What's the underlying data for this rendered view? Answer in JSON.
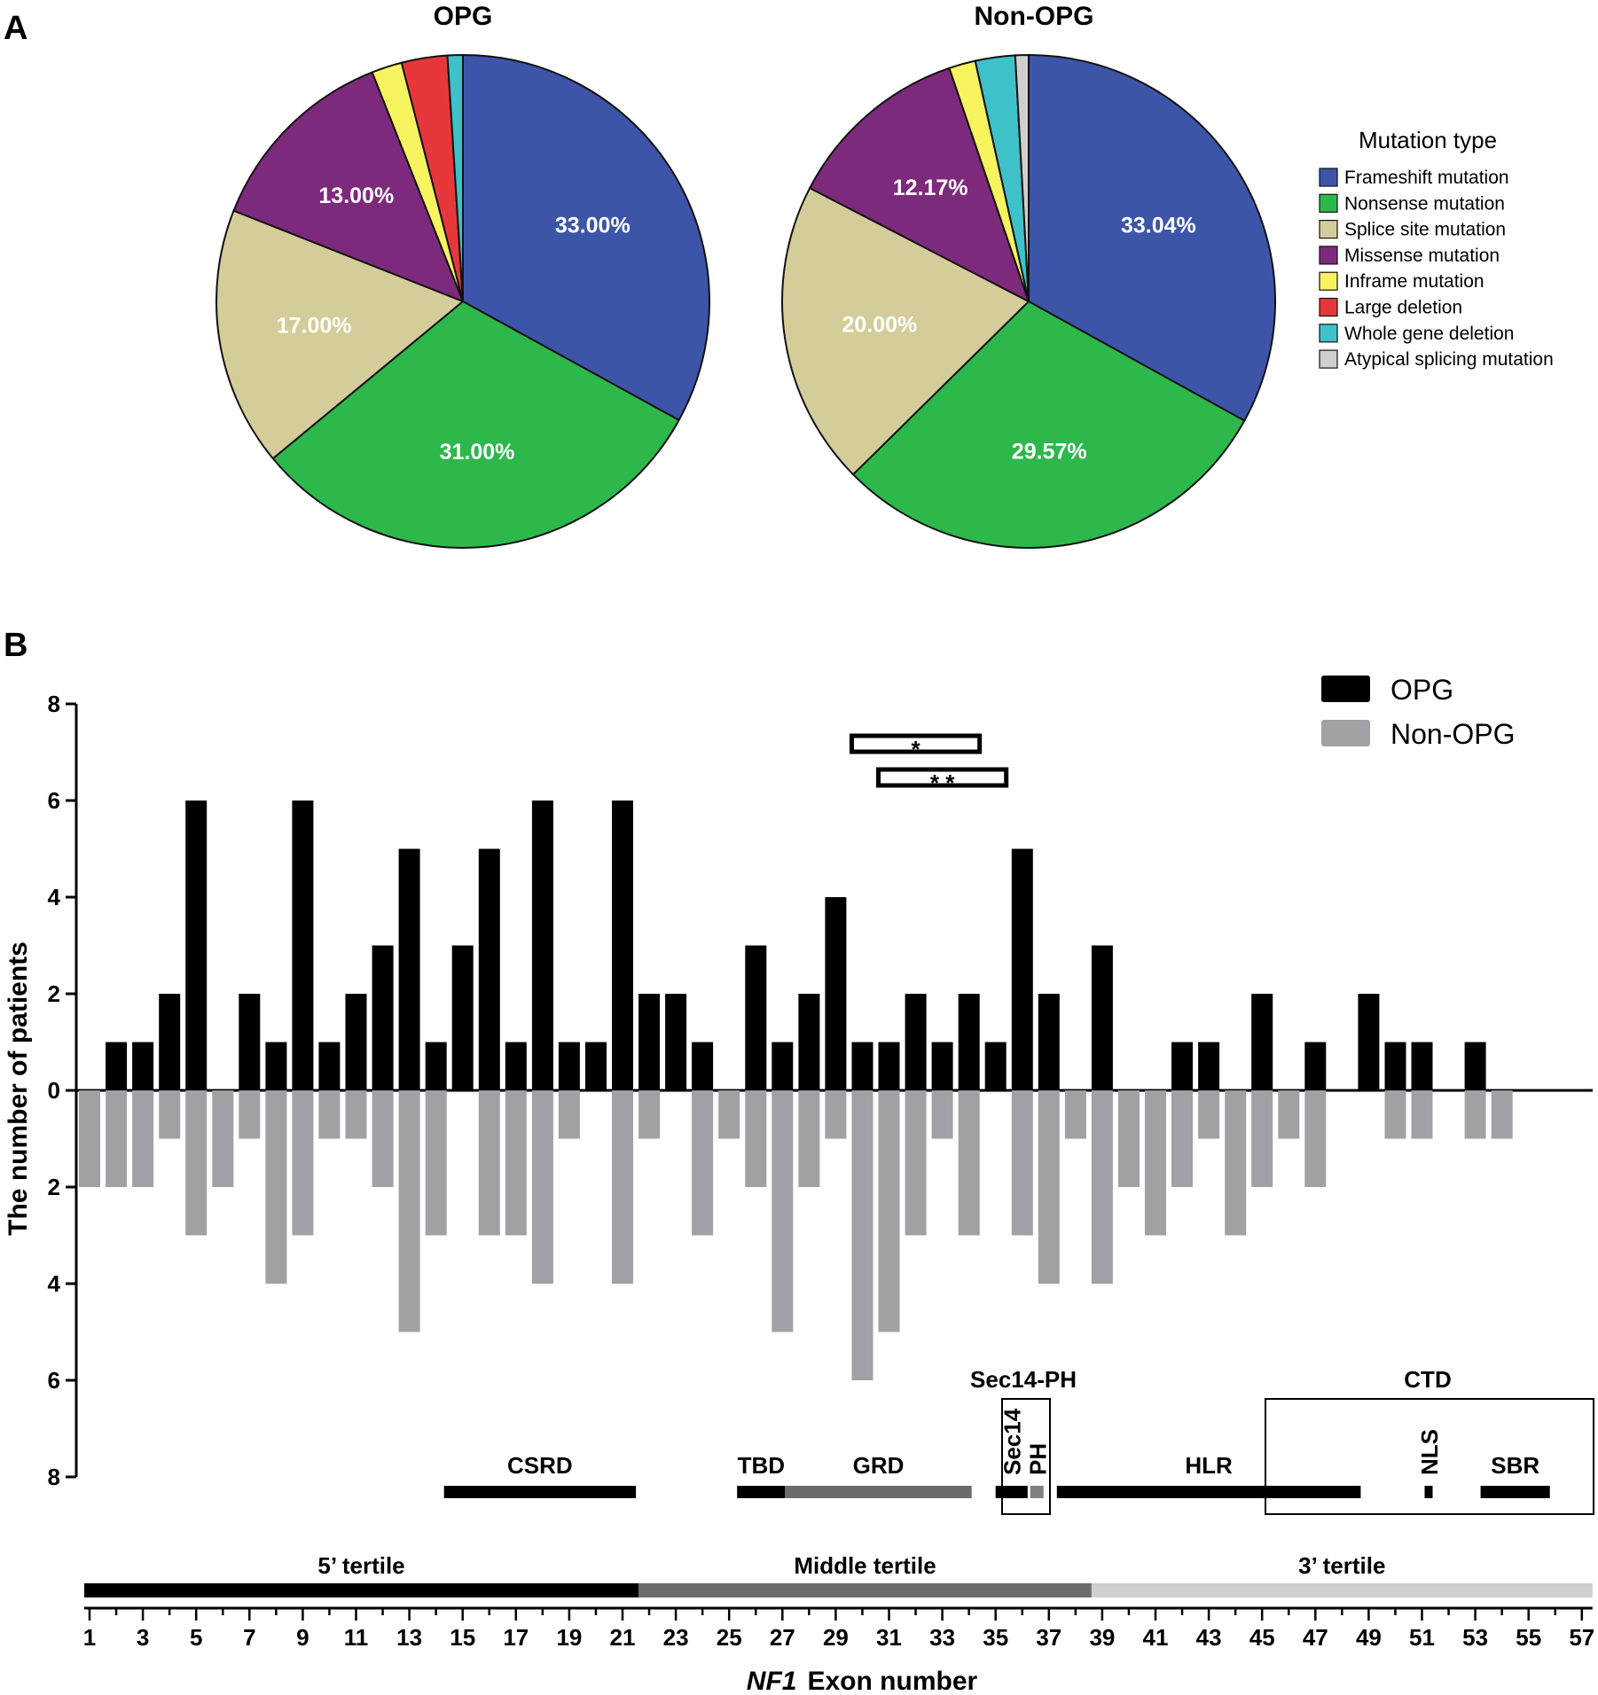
{
  "panels": {
    "a": "A",
    "b": "B"
  },
  "chart_data": [
    {
      "type": "pie",
      "title": "OPG",
      "labels": [
        "Frameshift mutation",
        "Nonsense mutation",
        "Splice site mutation",
        "Missense mutation",
        "Inframe mutation",
        "Large deletion",
        "Whole gene deletion"
      ],
      "values": [
        33.0,
        31.0,
        17.0,
        13.0,
        2.0,
        3.0,
        1.0
      ],
      "data_labels": [
        "33.00%",
        "31.00%",
        "17.00%",
        "13.00%",
        "",
        "",
        ""
      ],
      "colors": [
        "#3d55a8",
        "#2db84b",
        "#d4cc99",
        "#7d2a7d",
        "#f8f460",
        "#e8373a",
        "#3fc1c9"
      ]
    },
    {
      "type": "pie",
      "title": "Non-OPG",
      "labels": [
        "Frameshift mutation",
        "Nonsense mutation",
        "Splice site mutation",
        "Missense mutation",
        "Inframe mutation",
        "Whole gene deletion",
        "Atypical splicing mutation"
      ],
      "values": [
        33.04,
        29.57,
        20.0,
        12.17,
        1.74,
        2.61,
        0.87
      ],
      "data_labels": [
        "33.04%",
        "29.57%",
        "20.00%",
        "12.17%",
        "",
        "",
        ""
      ],
      "colors": [
        "#3d55a8",
        "#2db84b",
        "#d4cc99",
        "#7d2a7d",
        "#f8f460",
        "#3fc1c9",
        "#cfcfcf"
      ]
    },
    {
      "type": "bar",
      "title": "",
      "xlabel_italic": "NF1",
      "xlabel": "Exon number",
      "ylabel": "The number of patients",
      "ylim": [
        -8,
        8
      ],
      "y_ticks": [
        8,
        6,
        4,
        2,
        0,
        2,
        4,
        6,
        8
      ],
      "x_ticks": [
        1,
        3,
        5,
        7,
        9,
        11,
        13,
        15,
        17,
        19,
        21,
        23,
        25,
        27,
        29,
        31,
        33,
        35,
        37,
        39,
        41,
        43,
        45,
        47,
        49,
        51,
        53,
        55,
        57
      ],
      "categories": [
        1,
        2,
        3,
        4,
        5,
        6,
        7,
        8,
        9,
        10,
        11,
        12,
        13,
        14,
        15,
        16,
        17,
        18,
        19,
        20,
        21,
        22,
        23,
        24,
        25,
        26,
        27,
        28,
        29,
        30,
        31,
        32,
        33,
        34,
        35,
        36,
        37,
        38,
        39,
        40,
        41,
        42,
        43,
        44,
        45,
        46,
        47,
        48,
        49,
        50,
        51,
        52,
        53,
        54,
        55,
        56,
        57
      ],
      "series": [
        {
          "name": "OPG",
          "color": "#000000",
          "values": [
            0,
            1,
            1,
            2,
            6,
            0,
            2,
            1,
            6,
            1,
            2,
            3,
            5,
            1,
            3,
            5,
            1,
            6,
            1,
            1,
            6,
            2,
            2,
            1,
            0,
            3,
            1,
            2,
            4,
            1,
            1,
            2,
            1,
            2,
            1,
            5,
            2,
            0,
            3,
            0,
            0,
            1,
            1,
            0,
            2,
            0,
            1,
            0,
            2,
            1,
            1,
            0,
            1,
            0,
            0,
            0,
            0
          ]
        },
        {
          "name": "Non-OPG",
          "color": "#a1a1a5",
          "values": [
            2,
            2,
            2,
            1,
            3,
            2,
            1,
            4,
            3,
            1,
            1,
            2,
            5,
            3,
            0,
            3,
            3,
            4,
            1,
            0,
            4,
            1,
            0,
            3,
            1,
            2,
            5,
            2,
            1,
            6,
            5,
            3,
            1,
            3,
            0,
            3,
            4,
            1,
            4,
            2,
            3,
            2,
            1,
            3,
            2,
            1,
            2,
            0,
            0,
            1,
            1,
            0,
            1,
            1,
            0,
            0,
            0
          ]
        }
      ],
      "significance": [
        {
          "label": "*",
          "exons": [
            30,
            34
          ]
        },
        {
          "label": "* *",
          "exons": [
            31,
            35
          ]
        }
      ],
      "domains": {
        "group_labels": {
          "sec14ph": "Sec14-PH",
          "ctd": "CTD"
        },
        "items": [
          {
            "label": "CSRD",
            "start": 14.3,
            "end": 21.5,
            "color": "#000000"
          },
          {
            "label": "TBD",
            "start": 25.3,
            "end": 27.1,
            "color": "#000000"
          },
          {
            "label": "GRD",
            "start": 27.1,
            "end": 34.1,
            "color": "#6b6b6b"
          },
          {
            "label": "Sec14",
            "start": 35.0,
            "end": 36.2,
            "color": "#000000",
            "vertical": true
          },
          {
            "label": "PH",
            "start": 36.3,
            "end": 36.8,
            "color": "#808080",
            "vertical": true
          },
          {
            "label": "HLR",
            "start": 37.3,
            "end": 48.7,
            "color": "#000000"
          },
          {
            "label": "NLS",
            "start": 51.1,
            "end": 51.4,
            "color": "#000000",
            "vertical": true
          },
          {
            "label": "SBR",
            "start": 53.2,
            "end": 55.8,
            "color": "#000000"
          }
        ]
      },
      "tertiles": [
        {
          "label": "5’ tertile",
          "start": 0.8,
          "end": 21.6,
          "color": "#000000"
        },
        {
          "label": "Middle tertile",
          "start": 21.6,
          "end": 38.6,
          "color": "#6b6b6b"
        },
        {
          "label": "3’ tertile",
          "start": 38.6,
          "end": 57.4,
          "color": "#cfcfcf"
        }
      ]
    }
  ],
  "legend": {
    "title": "Mutation type",
    "items": [
      {
        "label": "Frameshift mutation",
        "color": "#3d55a8"
      },
      {
        "label": "Nonsense mutation",
        "color": "#2db84b"
      },
      {
        "label": "Splice site mutation",
        "color": "#d4cc99"
      },
      {
        "label": "Missense mutation",
        "color": "#7d2a7d"
      },
      {
        "label": "Inframe mutation",
        "color": "#f8f460"
      },
      {
        "label": "Large deletion",
        "color": "#e8373a"
      },
      {
        "label": "Whole gene deletion",
        "color": "#3fc1c9"
      },
      {
        "label": "Atypical splicing mutation",
        "color": "#cfcfcf"
      }
    ]
  }
}
